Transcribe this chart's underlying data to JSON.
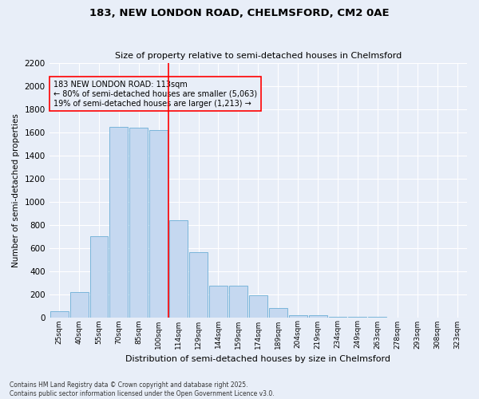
{
  "title": "183, NEW LONDON ROAD, CHELMSFORD, CM2 0AE",
  "subtitle": "Size of property relative to semi-detached houses in Chelmsford",
  "xlabel": "Distribution of semi-detached houses by size in Chelmsford",
  "ylabel": "Number of semi-detached properties",
  "categories": [
    "25sqm",
    "40sqm",
    "55sqm",
    "70sqm",
    "85sqm",
    "100sqm",
    "114sqm",
    "129sqm",
    "144sqm",
    "159sqm",
    "174sqm",
    "189sqm",
    "204sqm",
    "219sqm",
    "234sqm",
    "249sqm",
    "263sqm",
    "278sqm",
    "293sqm",
    "308sqm",
    "323sqm"
  ],
  "values": [
    50,
    220,
    700,
    1650,
    1640,
    1620,
    840,
    560,
    270,
    270,
    190,
    80,
    20,
    20,
    5,
    2,
    1,
    0,
    0,
    0,
    0
  ],
  "bar_color": "#c5d8f0",
  "bar_edge_color": "#6baed6",
  "marker_idx": 6,
  "marker_label": "183 NEW LONDON ROAD: 113sqm",
  "marker_color": "red",
  "annotation_line1": "← 80% of semi-detached houses are smaller (5,063)",
  "annotation_line2": "19% of semi-detached houses are larger (1,213) →",
  "ylim": [
    0,
    2200
  ],
  "yticks": [
    0,
    200,
    400,
    600,
    800,
    1000,
    1200,
    1400,
    1600,
    1800,
    2000,
    2200
  ],
  "bg_color": "#e8eef8",
  "grid_color": "#ffffff",
  "footer_line1": "Contains HM Land Registry data © Crown copyright and database right 2025.",
  "footer_line2": "Contains public sector information licensed under the Open Government Licence v3.0."
}
